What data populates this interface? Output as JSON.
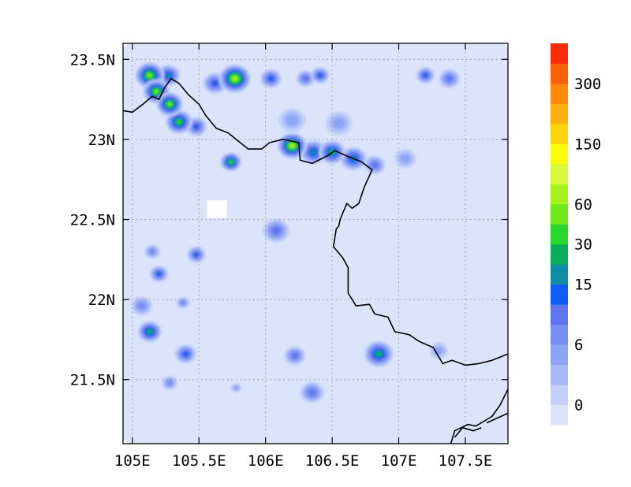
{
  "chart_data": {
    "type": "heatmap",
    "title": "",
    "xlabel": "",
    "ylabel": "",
    "xlim": [
      104.93,
      107.82
    ],
    "ylim": [
      21.1,
      23.6
    ],
    "x_ticks": [
      {
        "value": 105.0,
        "label": "105E"
      },
      {
        "value": 105.5,
        "label": "105.5E"
      },
      {
        "value": 106.0,
        "label": "106E"
      },
      {
        "value": 106.5,
        "label": "106.5E"
      },
      {
        "value": 107.0,
        "label": "107E"
      },
      {
        "value": 107.5,
        "label": "107.5E"
      }
    ],
    "y_ticks": [
      {
        "value": 21.5,
        "label": "21.5N"
      },
      {
        "value": 22.0,
        "label": "22N"
      },
      {
        "value": 22.5,
        "label": "22.5N"
      },
      {
        "value": 23.0,
        "label": "23N"
      },
      {
        "value": 23.5,
        "label": "23.5N"
      }
    ],
    "grid": true,
    "colorbar": {
      "colors": [
        "#dce4fb",
        "#c3d0fa",
        "#a7baf8",
        "#8ea4f5",
        "#778ef2",
        "#5f75ee",
        "#0e5ef5",
        "#0f8ea6",
        "#0aae5a",
        "#27d72c",
        "#6fe81c",
        "#a6f21a",
        "#d8f83a",
        "#fbfb0a",
        "#fcd40c",
        "#fdb00b",
        "#fd8a0a",
        "#fd6209",
        "#fc2c08"
      ],
      "labels": [
        {
          "boundary": 1,
          "text": "0"
        },
        {
          "boundary": 4,
          "text": "6"
        },
        {
          "boundary": 7,
          "text": "15"
        },
        {
          "boundary": 9,
          "text": "30"
        },
        {
          "boundary": 11,
          "text": "60"
        },
        {
          "boundary": 14,
          "text": "150"
        },
        {
          "boundary": 17,
          "text": "300"
        }
      ]
    },
    "blobs": [
      {
        "lon": 105.13,
        "lat": 23.4,
        "r": 0.11,
        "level": 10
      },
      {
        "lon": 105.18,
        "lat": 23.3,
        "r": 0.1,
        "level": 10
      },
      {
        "lon": 105.28,
        "lat": 23.22,
        "r": 0.1,
        "level": 10
      },
      {
        "lon": 105.35,
        "lat": 23.11,
        "r": 0.1,
        "level": 9
      },
      {
        "lon": 105.27,
        "lat": 23.4,
        "r": 0.09,
        "level": 7
      },
      {
        "lon": 105.48,
        "lat": 23.08,
        "r": 0.08,
        "level": 6
      },
      {
        "lon": 105.77,
        "lat": 23.38,
        "r": 0.12,
        "level": 11
      },
      {
        "lon": 105.62,
        "lat": 23.35,
        "r": 0.09,
        "level": 6
      },
      {
        "lon": 105.74,
        "lat": 22.86,
        "r": 0.08,
        "level": 9
      },
      {
        "lon": 106.04,
        "lat": 23.38,
        "r": 0.08,
        "level": 6
      },
      {
        "lon": 106.2,
        "lat": 22.96,
        "r": 0.11,
        "level": 11
      },
      {
        "lon": 106.36,
        "lat": 22.92,
        "r": 0.1,
        "level": 7
      },
      {
        "lon": 106.5,
        "lat": 22.92,
        "r": 0.1,
        "level": 8
      },
      {
        "lon": 106.66,
        "lat": 22.88,
        "r": 0.1,
        "level": 7
      },
      {
        "lon": 106.82,
        "lat": 22.84,
        "r": 0.08,
        "level": 5
      },
      {
        "lon": 106.3,
        "lat": 23.38,
        "r": 0.07,
        "level": 5
      },
      {
        "lon": 106.41,
        "lat": 23.4,
        "r": 0.07,
        "level": 6
      },
      {
        "lon": 107.2,
        "lat": 23.4,
        "r": 0.07,
        "level": 6
      },
      {
        "lon": 107.38,
        "lat": 23.38,
        "r": 0.08,
        "level": 5
      },
      {
        "lon": 107.05,
        "lat": 22.88,
        "r": 0.08,
        "level": 3
      },
      {
        "lon": 106.08,
        "lat": 22.43,
        "r": 0.1,
        "level": 5
      },
      {
        "lon": 105.48,
        "lat": 22.28,
        "r": 0.07,
        "level": 6
      },
      {
        "lon": 105.15,
        "lat": 22.3,
        "r": 0.06,
        "level": 4
      },
      {
        "lon": 105.2,
        "lat": 22.16,
        "r": 0.07,
        "level": 6
      },
      {
        "lon": 105.13,
        "lat": 21.8,
        "r": 0.09,
        "level": 8
      },
      {
        "lon": 105.07,
        "lat": 21.96,
        "r": 0.08,
        "level": 4
      },
      {
        "lon": 105.4,
        "lat": 21.66,
        "r": 0.08,
        "level": 6
      },
      {
        "lon": 105.28,
        "lat": 21.48,
        "r": 0.06,
        "level": 4
      },
      {
        "lon": 106.22,
        "lat": 21.65,
        "r": 0.08,
        "level": 5
      },
      {
        "lon": 106.35,
        "lat": 21.42,
        "r": 0.09,
        "level": 5
      },
      {
        "lon": 106.85,
        "lat": 21.66,
        "r": 0.11,
        "level": 8
      },
      {
        "lon": 107.3,
        "lat": 21.68,
        "r": 0.07,
        "level": 3
      },
      {
        "lon": 106.2,
        "lat": 23.12,
        "r": 0.1,
        "level": 3
      },
      {
        "lon": 106.55,
        "lat": 23.1,
        "r": 0.1,
        "level": 3
      },
      {
        "lon": 105.38,
        "lat": 21.98,
        "r": 0.05,
        "level": 4
      },
      {
        "lon": 105.78,
        "lat": 21.45,
        "r": 0.04,
        "level": 3
      }
    ],
    "no_data_patches": [
      {
        "lon": [
          105.56,
          105.71
        ],
        "lat": [
          22.51,
          22.62
        ]
      }
    ],
    "borders": [
      {
        "line": [
          [
            104.93,
            23.18
          ],
          [
            105.0,
            23.17
          ],
          [
            105.08,
            23.22
          ],
          [
            105.15,
            23.27
          ],
          [
            105.2,
            23.25
          ],
          [
            105.24,
            23.32
          ],
          [
            105.29,
            23.38
          ],
          [
            105.35,
            23.35
          ],
          [
            105.42,
            23.28
          ],
          [
            105.5,
            23.22
          ],
          [
            105.55,
            23.15
          ],
          [
            105.63,
            23.07
          ],
          [
            105.72,
            23.04
          ],
          [
            105.78,
            23.0
          ],
          [
            105.87,
            22.94
          ],
          [
            105.97,
            22.94
          ],
          [
            106.03,
            22.98
          ],
          [
            106.13,
            23.0
          ],
          [
            106.25,
            22.98
          ],
          [
            106.26,
            22.87
          ],
          [
            106.35,
            22.85
          ],
          [
            106.47,
            22.9
          ],
          [
            106.52,
            22.93
          ],
          [
            106.6,
            22.9
          ],
          [
            106.72,
            22.86
          ],
          [
            106.8,
            22.81
          ],
          [
            106.74,
            22.7
          ],
          [
            106.7,
            22.6
          ],
          [
            106.65,
            22.57
          ],
          [
            106.61,
            22.6
          ],
          [
            106.56,
            22.5
          ],
          [
            106.55,
            22.46
          ],
          [
            106.53,
            22.44
          ],
          [
            106.51,
            22.33
          ],
          [
            106.58,
            22.26
          ],
          [
            106.62,
            22.2
          ],
          [
            106.62,
            22.04
          ],
          [
            106.68,
            21.96
          ],
          [
            106.78,
            21.97
          ],
          [
            106.82,
            21.91
          ],
          [
            106.92,
            21.89
          ],
          [
            106.97,
            21.8
          ],
          [
            107.08,
            21.78
          ],
          [
            107.15,
            21.74
          ],
          [
            107.26,
            21.7
          ],
          [
            107.33,
            21.6
          ],
          [
            107.4,
            21.62
          ],
          [
            107.5,
            21.59
          ],
          [
            107.6,
            21.6
          ],
          [
            107.7,
            21.62
          ],
          [
            107.82,
            21.66
          ]
        ]
      },
      {
        "line": [
          [
            107.38,
            21.07
          ],
          [
            107.42,
            21.18
          ],
          [
            107.52,
            21.22
          ],
          [
            107.58,
            21.21
          ],
          [
            107.7,
            21.27
          ],
          [
            107.76,
            21.34
          ],
          [
            107.82,
            21.44
          ]
        ]
      },
      {
        "line": [
          [
            107.42,
            21.14
          ],
          [
            107.48,
            21.2
          ],
          [
            107.56,
            21.18
          ],
          [
            107.62,
            21.2
          ]
        ]
      },
      {
        "line": [
          [
            107.66,
            21.23
          ],
          [
            107.74,
            21.26
          ],
          [
            107.82,
            21.29
          ]
        ]
      }
    ]
  }
}
